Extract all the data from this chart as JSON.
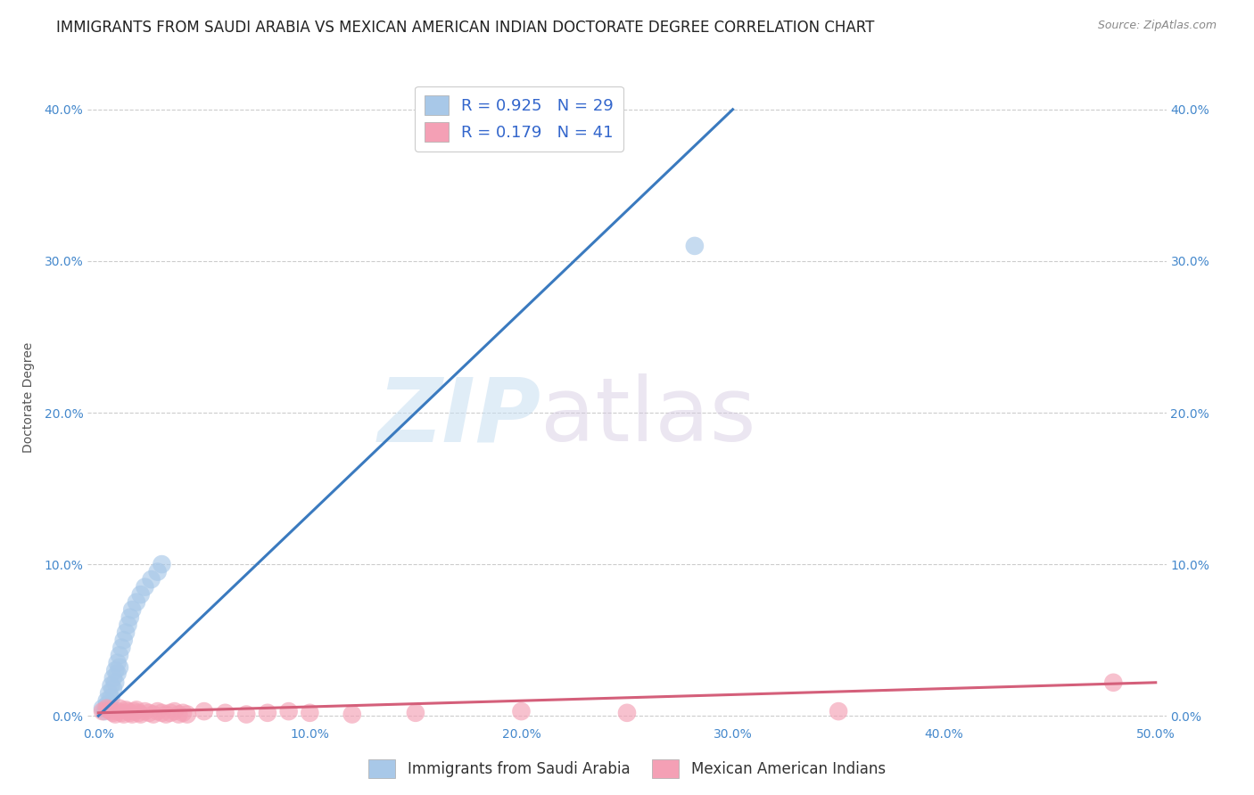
{
  "title": "IMMIGRANTS FROM SAUDI ARABIA VS MEXICAN AMERICAN INDIAN DOCTORATE DEGREE CORRELATION CHART",
  "source": "Source: ZipAtlas.com",
  "ylabel": "Doctorate Degree",
  "xlabel_ticks": [
    "0.0%",
    "10.0%",
    "20.0%",
    "30.0%",
    "40.0%",
    "50.0%"
  ],
  "xlabel_vals": [
    0.0,
    0.1,
    0.2,
    0.3,
    0.4,
    0.5
  ],
  "ylabel_ticks": [
    "0.0%",
    "10.0%",
    "20.0%",
    "30.0%",
    "40.0%"
  ],
  "ylabel_vals": [
    0.0,
    0.1,
    0.2,
    0.3,
    0.4
  ],
  "xlim": [
    -0.005,
    0.505
  ],
  "ylim": [
    -0.005,
    0.425
  ],
  "legend_blue_label": "Immigrants from Saudi Arabia",
  "legend_pink_label": "Mexican American Indians",
  "R_blue": 0.925,
  "N_blue": 29,
  "R_pink": 0.179,
  "N_pink": 41,
  "blue_color": "#a8c8e8",
  "pink_color": "#f4a0b5",
  "trendline_blue_color": "#3a7abf",
  "trendline_pink_color": "#d45f7a",
  "watermark_zip": "ZIP",
  "watermark_atlas": "atlas",
  "title_fontsize": 12,
  "axis_label_fontsize": 10,
  "tick_fontsize": 10,
  "blue_scatter_x": [
    0.002,
    0.003,
    0.004,
    0.004,
    0.005,
    0.005,
    0.006,
    0.006,
    0.007,
    0.007,
    0.008,
    0.008,
    0.009,
    0.009,
    0.01,
    0.01,
    0.011,
    0.012,
    0.013,
    0.014,
    0.015,
    0.016,
    0.018,
    0.02,
    0.022,
    0.025,
    0.028,
    0.03,
    0.282
  ],
  "blue_scatter_y": [
    0.005,
    0.003,
    0.01,
    0.007,
    0.015,
    0.008,
    0.02,
    0.012,
    0.025,
    0.018,
    0.03,
    0.022,
    0.035,
    0.028,
    0.04,
    0.032,
    0.045,
    0.05,
    0.055,
    0.06,
    0.065,
    0.07,
    0.075,
    0.08,
    0.085,
    0.09,
    0.095,
    0.1,
    0.31
  ],
  "pink_scatter_x": [
    0.002,
    0.004,
    0.005,
    0.006,
    0.007,
    0.008,
    0.009,
    0.01,
    0.011,
    0.012,
    0.013,
    0.014,
    0.015,
    0.016,
    0.017,
    0.018,
    0.019,
    0.02,
    0.022,
    0.024,
    0.026,
    0.028,
    0.03,
    0.032,
    0.034,
    0.036,
    0.038,
    0.04,
    0.042,
    0.05,
    0.06,
    0.07,
    0.08,
    0.09,
    0.1,
    0.12,
    0.15,
    0.2,
    0.25,
    0.35,
    0.48
  ],
  "pink_scatter_y": [
    0.003,
    0.005,
    0.004,
    0.003,
    0.002,
    0.001,
    0.003,
    0.005,
    0.002,
    0.001,
    0.004,
    0.003,
    0.002,
    0.001,
    0.003,
    0.004,
    0.002,
    0.001,
    0.003,
    0.002,
    0.001,
    0.003,
    0.002,
    0.001,
    0.002,
    0.003,
    0.001,
    0.002,
    0.001,
    0.003,
    0.002,
    0.001,
    0.002,
    0.003,
    0.002,
    0.001,
    0.002,
    0.003,
    0.002,
    0.003,
    0.022
  ],
  "blue_trendline_x": [
    0.0,
    0.3
  ],
  "blue_trendline_y": [
    0.0,
    0.4
  ],
  "pink_trendline_x": [
    0.0,
    0.5
  ],
  "pink_trendline_y": [
    0.002,
    0.022
  ]
}
